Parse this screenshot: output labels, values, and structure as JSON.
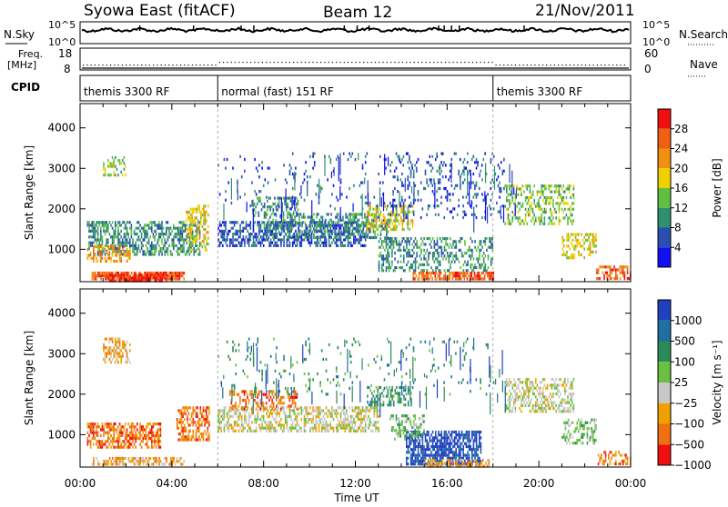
{
  "header": {
    "station": "Syowa East (fitACF)",
    "beam": "Beam 12",
    "date": "21/Nov/2011"
  },
  "strips": {
    "nsky_label": "N.Sky",
    "nsky_ticks": [
      "10^5",
      "10^0"
    ],
    "nsearch_label": "N.Search",
    "freq_label_1": "Freq.",
    "freq_label_2": "[MHz]",
    "freq_ticks": [
      "18",
      "8"
    ],
    "nave_label": "Nave",
    "nave_ticks": [
      "60",
      "0"
    ],
    "cpid_label": "CPID",
    "cpid_segments": [
      {
        "start_hour": 0,
        "end_hour": 6,
        "label": "themis 3300 RF"
      },
      {
        "start_hour": 6,
        "end_hour": 18,
        "label": "normal (fast) 151 RF"
      },
      {
        "start_hour": 18,
        "end_hour": 24,
        "label": "themis 3300 RF"
      }
    ]
  },
  "colors": {
    "power": [
      "#1010f0",
      "#2a4fb0",
      "#2f8f6f",
      "#5fc040",
      "#f0d000",
      "#f09010",
      "#f06010",
      "#f01010"
    ],
    "velocity": [
      "#2040c0",
      "#1f6fa0",
      "#2a8a5a",
      "#6ac040",
      "#c8c8c8",
      "#f0a000",
      "#f07010",
      "#f01010"
    ]
  },
  "chart_data": [
    {
      "type": "heatmap",
      "name": "power-panel",
      "ylabel": "Slant Range [km]",
      "xlim": [
        0,
        24
      ],
      "ylim": [
        200,
        4600
      ],
      "yticks": [
        1000,
        2000,
        3000,
        4000
      ],
      "colorbar": {
        "label": "Power [dB]",
        "ticks": [
          "4",
          "8",
          "12",
          "16",
          "20",
          "24",
          "28"
        ],
        "range": [
          0,
          30
        ]
      },
      "regions": [
        {
          "x": [
            0.3,
            5.2
          ],
          "y": [
            900,
            1700
          ],
          "level": 2,
          "density": 0.55
        },
        {
          "x": [
            0.5,
            4.5
          ],
          "y": [
            250,
            450
          ],
          "level": 6,
          "density": 0.85
        },
        {
          "x": [
            1.2,
            3.8
          ],
          "y": [
            250,
            400
          ],
          "level": 7,
          "density": 0.8
        },
        {
          "x": [
            0.3,
            2.2
          ],
          "y": [
            700,
            1100
          ],
          "level": 5,
          "density": 0.5
        },
        {
          "x": [
            1.0,
            2.0
          ],
          "y": [
            2800,
            3300
          ],
          "level": 3,
          "density": 0.4
        },
        {
          "x": [
            4.6,
            5.6
          ],
          "y": [
            1000,
            2100
          ],
          "level": 4,
          "density": 0.45
        },
        {
          "x": [
            6.0,
            12.5
          ],
          "y": [
            1100,
            1700
          ],
          "level": 1,
          "density": 0.55
        },
        {
          "x": [
            8.0,
            13.5
          ],
          "y": [
            1300,
            1900
          ],
          "level": 2,
          "density": 0.45
        },
        {
          "x": [
            7.5,
            9.5
          ],
          "y": [
            1800,
            2300
          ],
          "level": 2,
          "density": 0.4
        },
        {
          "x": [
            12.5,
            14.5
          ],
          "y": [
            1500,
            2100
          ],
          "level": 4,
          "density": 0.45
        },
        {
          "x": [
            13.0,
            18.0
          ],
          "y": [
            500,
            1300
          ],
          "level": 2,
          "density": 0.4
        },
        {
          "x": [
            14.5,
            18.0
          ],
          "y": [
            250,
            450
          ],
          "level": 6,
          "density": 0.75
        },
        {
          "x": [
            13.5,
            18.5
          ],
          "y": [
            1800,
            3400
          ],
          "level": 1,
          "density": 0.12
        },
        {
          "x": [
            18.5,
            21.5
          ],
          "y": [
            1600,
            2600
          ],
          "level": 3,
          "density": 0.4
        },
        {
          "x": [
            21.0,
            22.5
          ],
          "y": [
            800,
            1400
          ],
          "level": 4,
          "density": 0.45
        },
        {
          "x": [
            22.5,
            24.0
          ],
          "y": [
            250,
            600
          ],
          "level": 6,
          "density": 0.55
        },
        {
          "x": [
            6.0,
            18.0
          ],
          "y": [
            2000,
            3400
          ],
          "level": 1,
          "density": 0.05
        }
      ]
    },
    {
      "type": "heatmap",
      "name": "velocity-panel",
      "ylabel": "Slant Range [km]",
      "xlabel": "Time UT",
      "xlim": [
        0,
        24
      ],
      "ylim": [
        200,
        4600
      ],
      "yticks": [
        1000,
        2000,
        3000,
        4000
      ],
      "xticks": [
        "00:00",
        "04:00",
        "08:00",
        "12:00",
        "16:00",
        "20:00",
        "00:00"
      ],
      "colorbar": {
        "label": "Velocity [m s⁻¹]",
        "ticks": [
          "1000",
          "500",
          "100",
          "25",
          "−25",
          "−100",
          "−500",
          "−1000"
        ]
      },
      "regions": [
        {
          "x": [
            0.3,
            3.5
          ],
          "y": [
            700,
            1300
          ],
          "level": 6,
          "density": 0.6
        },
        {
          "x": [
            0.5,
            4.5
          ],
          "y": [
            250,
            450
          ],
          "level": 5,
          "density": 0.6
        },
        {
          "x": [
            1.0,
            2.2
          ],
          "y": [
            2800,
            3400
          ],
          "level": 5,
          "density": 0.4
        },
        {
          "x": [
            4.2,
            5.6
          ],
          "y": [
            900,
            1700
          ],
          "level": 6,
          "density": 0.55
        },
        {
          "x": [
            6.0,
            13.0
          ],
          "y": [
            1100,
            1700
          ],
          "level": 4,
          "density": 0.55
        },
        {
          "x": [
            6.5,
            9.5
          ],
          "y": [
            1600,
            2100
          ],
          "level": 6,
          "density": 0.4
        },
        {
          "x": [
            12.5,
            14.5
          ],
          "y": [
            1700,
            2200
          ],
          "level": 2,
          "density": 0.45
        },
        {
          "x": [
            14.2,
            17.5
          ],
          "y": [
            300,
            1100
          ],
          "level": 0,
          "density": 0.7
        },
        {
          "x": [
            13.5,
            15.0
          ],
          "y": [
            900,
            1500
          ],
          "level": 3,
          "density": 0.4
        },
        {
          "x": [
            15.0,
            17.8
          ],
          "y": [
            250,
            400
          ],
          "level": 5,
          "density": 0.55
        },
        {
          "x": [
            18.5,
            21.5
          ],
          "y": [
            1600,
            2400
          ],
          "level": 4,
          "density": 0.5
        },
        {
          "x": [
            21.0,
            22.5
          ],
          "y": [
            800,
            1400
          ],
          "level": 3,
          "density": 0.4
        },
        {
          "x": [
            22.5,
            24.0
          ],
          "y": [
            250,
            600
          ],
          "level": 6,
          "density": 0.5
        },
        {
          "x": [
            6.0,
            18.0
          ],
          "y": [
            2000,
            3400
          ],
          "level": 2,
          "density": 0.05
        }
      ]
    }
  ]
}
